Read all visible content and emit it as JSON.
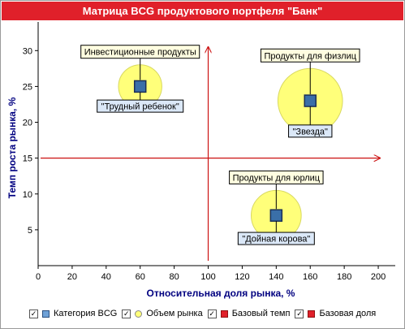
{
  "colors": {
    "title_bg": "#e0202a",
    "title_fg": "#ffffff",
    "axis_label": "#000080",
    "bubble_fill": "#ffff7a",
    "bubble_stroke": "#d8d860",
    "marker_fill": "#3a6fa8",
    "marker_stroke": "#1b2f57",
    "baseline": "#cc1111",
    "label_top_bg": "#fffde0",
    "label_bottom_bg": "#dbe8f8"
  },
  "chart_data": {
    "type": "scatter",
    "title": "Матрица BCG продуктового портфеля \"Банк\"",
    "xlabel": "Относительная доля рынка, %",
    "ylabel": "Темп роста рынка, %",
    "xlim": [
      0,
      210
    ],
    "ylim": [
      0,
      34
    ],
    "x_ticks": [
      0,
      20,
      40,
      60,
      80,
      100,
      120,
      140,
      160,
      180,
      200
    ],
    "y_ticks": [
      5,
      10,
      15,
      20,
      25,
      30
    ],
    "base_growth": 15,
    "base_share": 100,
    "points": [
      {
        "product": "Инвестиционные продукты",
        "category": "\"Трудный ребенок\"",
        "x": 60,
        "y": 25,
        "market_size": 9
      },
      {
        "product": "Продукты для физлиц",
        "category": "\"Звезда\"",
        "x": 160,
        "y": 23,
        "market_size": 20
      },
      {
        "product": "Продукты для юрлиц",
        "category": "\"Дойная корова\"",
        "x": 140,
        "y": 7,
        "market_size": 12
      }
    ],
    "legend_position": "bottom",
    "grid": false
  },
  "legend": {
    "items": [
      {
        "label": "Категория BCG",
        "icon": "square-blue"
      },
      {
        "label": "Объем рынка",
        "icon": "circle-yellow"
      },
      {
        "label": "Базовый темп",
        "icon": "square-red"
      },
      {
        "label": "Базовая доля",
        "icon": "square-red"
      }
    ],
    "check_mark": "✓"
  }
}
